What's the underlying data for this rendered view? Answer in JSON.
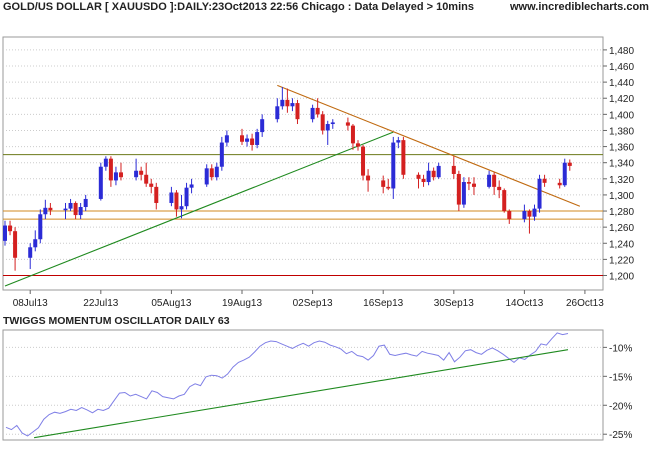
{
  "header": {
    "title": "GOLD/US DOLLAR [ XAUUSDO ]:DAILY:23Oct2013 22:56 Chicago : Data Delayed > 10mins",
    "website": "www.incrediblecharts.com"
  },
  "colors": {
    "up": "#2b2bd6",
    "down": "#d42020",
    "grid": "#cccccc",
    "trendline_green": "#1f8a1f",
    "trendline_brown": "#c06a10",
    "hline_olive": "#6b7a1a",
    "hline_orange": "#d08a20",
    "hline_red": "#c00000",
    "oscillator": "#7f7fe6"
  },
  "chart_data": [
    {
      "type": "candlestick",
      "title": "GOLD/US DOLLAR [ XAUUSDO ]:DAILY:23Oct2013 22:56 Chicago : Data Delayed > 10mins",
      "x_tick_labels": [
        "08Jul13",
        "22Jul13",
        "05Aug13",
        "19Aug13",
        "02Sep13",
        "16Sep13",
        "30Sep13",
        "14Oct13",
        "26Oct13"
      ],
      "y_tick_labels": [
        "1,480",
        "1,460",
        "1,440",
        "1,420",
        "1,400",
        "1,380",
        "1,360",
        "1,340",
        "1,320",
        "1,300",
        "1,280",
        "1,260",
        "1,240",
        "1,220",
        "1,200"
      ],
      "ylim": [
        1182,
        1496
      ],
      "xlim": [
        "2013-07-03",
        "2013-10-28"
      ],
      "grid": true,
      "candles": [
        {
          "d": "2013-07-03",
          "o": 1243,
          "h": 1268,
          "l": 1237,
          "c": 1262
        },
        {
          "d": "2013-07-04",
          "o": 1262,
          "h": 1268,
          "l": 1250,
          "c": 1255
        },
        {
          "d": "2013-07-05",
          "o": 1255,
          "h": 1260,
          "l": 1206,
          "c": 1222
        },
        {
          "d": "2013-07-08",
          "o": 1222,
          "h": 1240,
          "l": 1208,
          "c": 1235
        },
        {
          "d": "2013-07-09",
          "o": 1235,
          "h": 1256,
          "l": 1230,
          "c": 1245
        },
        {
          "d": "2013-07-10",
          "o": 1245,
          "h": 1282,
          "l": 1240,
          "c": 1276
        },
        {
          "d": "2013-07-11",
          "o": 1276,
          "h": 1294,
          "l": 1270,
          "c": 1284
        },
        {
          "d": "2013-07-12",
          "o": 1284,
          "h": 1290,
          "l": 1275,
          "c": 1281
        },
        {
          "d": "2013-07-15",
          "o": 1281,
          "h": 1290,
          "l": 1270,
          "c": 1283
        },
        {
          "d": "2013-07-16",
          "o": 1283,
          "h": 1295,
          "l": 1280,
          "c": 1290
        },
        {
          "d": "2013-07-17",
          "o": 1290,
          "h": 1292,
          "l": 1270,
          "c": 1275
        },
        {
          "d": "2013-07-18",
          "o": 1275,
          "h": 1290,
          "l": 1270,
          "c": 1285
        },
        {
          "d": "2013-07-19",
          "o": 1285,
          "h": 1300,
          "l": 1280,
          "c": 1295
        },
        {
          "d": "2013-07-22",
          "o": 1295,
          "h": 1340,
          "l": 1293,
          "c": 1335
        },
        {
          "d": "2013-07-23",
          "o": 1335,
          "h": 1348,
          "l": 1330,
          "c": 1345
        },
        {
          "d": "2013-07-24",
          "o": 1345,
          "h": 1348,
          "l": 1310,
          "c": 1318
        },
        {
          "d": "2013-07-25",
          "o": 1318,
          "h": 1335,
          "l": 1312,
          "c": 1328
        },
        {
          "d": "2013-07-26",
          "o": 1328,
          "h": 1340,
          "l": 1318,
          "c": 1322
        },
        {
          "d": "2013-07-29",
          "o": 1322,
          "h": 1345,
          "l": 1318,
          "c": 1330
        },
        {
          "d": "2013-07-30",
          "o": 1330,
          "h": 1335,
          "l": 1318,
          "c": 1325
        },
        {
          "d": "2013-07-31",
          "o": 1325,
          "h": 1340,
          "l": 1310,
          "c": 1314
        },
        {
          "d": "2013-08-01",
          "o": 1314,
          "h": 1320,
          "l": 1302,
          "c": 1310
        },
        {
          "d": "2013-08-02",
          "o": 1310,
          "h": 1315,
          "l": 1282,
          "c": 1290
        },
        {
          "d": "2013-08-05",
          "o": 1290,
          "h": 1310,
          "l": 1286,
          "c": 1303
        },
        {
          "d": "2013-08-06",
          "o": 1303,
          "h": 1306,
          "l": 1273,
          "c": 1282
        },
        {
          "d": "2013-08-07",
          "o": 1282,
          "h": 1300,
          "l": 1271,
          "c": 1286
        },
        {
          "d": "2013-08-08",
          "o": 1286,
          "h": 1315,
          "l": 1282,
          "c": 1309
        },
        {
          "d": "2013-08-09",
          "o": 1309,
          "h": 1320,
          "l": 1302,
          "c": 1313
        },
        {
          "d": "2013-08-12",
          "o": 1313,
          "h": 1338,
          "l": 1310,
          "c": 1333
        },
        {
          "d": "2013-08-13",
          "o": 1333,
          "h": 1338,
          "l": 1318,
          "c": 1322
        },
        {
          "d": "2013-08-14",
          "o": 1322,
          "h": 1340,
          "l": 1318,
          "c": 1335
        },
        {
          "d": "2013-08-15",
          "o": 1335,
          "h": 1372,
          "l": 1330,
          "c": 1365
        },
        {
          "d": "2013-08-16",
          "o": 1365,
          "h": 1380,
          "l": 1360,
          "c": 1374
        },
        {
          "d": "2013-08-19",
          "o": 1374,
          "h": 1382,
          "l": 1362,
          "c": 1366
        },
        {
          "d": "2013-08-20",
          "o": 1366,
          "h": 1375,
          "l": 1360,
          "c": 1370
        },
        {
          "d": "2013-08-21",
          "o": 1370,
          "h": 1376,
          "l": 1355,
          "c": 1362
        },
        {
          "d": "2013-08-22",
          "o": 1362,
          "h": 1382,
          "l": 1358,
          "c": 1378
        },
        {
          "d": "2013-08-23",
          "o": 1378,
          "h": 1400,
          "l": 1372,
          "c": 1394
        },
        {
          "d": "2013-08-26",
          "o": 1394,
          "h": 1420,
          "l": 1390,
          "c": 1410
        },
        {
          "d": "2013-08-27",
          "o": 1410,
          "h": 1434,
          "l": 1406,
          "c": 1418
        },
        {
          "d": "2013-08-28",
          "o": 1418,
          "h": 1432,
          "l": 1402,
          "c": 1410
        },
        {
          "d": "2013-08-29",
          "o": 1410,
          "h": 1420,
          "l": 1404,
          "c": 1414
        },
        {
          "d": "2013-08-30",
          "o": 1414,
          "h": 1418,
          "l": 1388,
          "c": 1394
        },
        {
          "d": "2013-09-02",
          "o": 1394,
          "h": 1412,
          "l": 1390,
          "c": 1408
        },
        {
          "d": "2013-09-03",
          "o": 1408,
          "h": 1420,
          "l": 1396,
          "c": 1400
        },
        {
          "d": "2013-09-04",
          "o": 1400,
          "h": 1404,
          "l": 1375,
          "c": 1380
        },
        {
          "d": "2013-09-05",
          "o": 1380,
          "h": 1392,
          "l": 1362,
          "c": 1388
        },
        {
          "d": "2013-09-06",
          "o": 1388,
          "h": 1394,
          "l": 1382,
          "c": 1390
        },
        {
          "d": "2013-09-09",
          "o": 1390,
          "h": 1396,
          "l": 1380,
          "c": 1386
        },
        {
          "d": "2013-09-10",
          "o": 1386,
          "h": 1388,
          "l": 1356,
          "c": 1364
        },
        {
          "d": "2013-09-11",
          "o": 1364,
          "h": 1368,
          "l": 1355,
          "c": 1360
        },
        {
          "d": "2013-09-12",
          "o": 1360,
          "h": 1362,
          "l": 1318,
          "c": 1324
        },
        {
          "d": "2013-09-13",
          "o": 1324,
          "h": 1332,
          "l": 1304,
          "c": 1318
        },
        {
          "d": "2013-09-16",
          "o": 1318,
          "h": 1324,
          "l": 1302,
          "c": 1310
        },
        {
          "d": "2013-09-17",
          "o": 1310,
          "h": 1320,
          "l": 1306,
          "c": 1308
        },
        {
          "d": "2013-09-18",
          "o": 1308,
          "h": 1372,
          "l": 1295,
          "c": 1365
        },
        {
          "d": "2013-09-19",
          "o": 1365,
          "h": 1372,
          "l": 1358,
          "c": 1368
        },
        {
          "d": "2013-09-20",
          "o": 1368,
          "h": 1372,
          "l": 1320,
          "c": 1325
        },
        {
          "d": "2013-09-23",
          "o": 1325,
          "h": 1328,
          "l": 1308,
          "c": 1320
        },
        {
          "d": "2013-09-24",
          "o": 1320,
          "h": 1325,
          "l": 1310,
          "c": 1316
        },
        {
          "d": "2013-09-25",
          "o": 1316,
          "h": 1340,
          "l": 1312,
          "c": 1330
        },
        {
          "d": "2013-09-26",
          "o": 1330,
          "h": 1334,
          "l": 1318,
          "c": 1322
        },
        {
          "d": "2013-09-27",
          "o": 1322,
          "h": 1340,
          "l": 1320,
          "c": 1336
        },
        {
          "d": "2013-09-30",
          "o": 1336,
          "h": 1348,
          "l": 1320,
          "c": 1326
        },
        {
          "d": "2013-10-01",
          "o": 1326,
          "h": 1330,
          "l": 1280,
          "c": 1288
        },
        {
          "d": "2013-10-02",
          "o": 1288,
          "h": 1322,
          "l": 1284,
          "c": 1316
        },
        {
          "d": "2013-10-03",
          "o": 1316,
          "h": 1322,
          "l": 1306,
          "c": 1314
        },
        {
          "d": "2013-10-04",
          "o": 1314,
          "h": 1322,
          "l": 1300,
          "c": 1310
        },
        {
          "d": "2013-10-07",
          "o": 1310,
          "h": 1330,
          "l": 1308,
          "c": 1325
        },
        {
          "d": "2013-10-08",
          "o": 1325,
          "h": 1328,
          "l": 1300,
          "c": 1310
        },
        {
          "d": "2013-10-09",
          "o": 1310,
          "h": 1318,
          "l": 1296,
          "c": 1306
        },
        {
          "d": "2013-10-10",
          "o": 1306,
          "h": 1308,
          "l": 1278,
          "c": 1280
        },
        {
          "d": "2013-10-11",
          "o": 1280,
          "h": 1282,
          "l": 1264,
          "c": 1270
        },
        {
          "d": "2013-10-14",
          "o": 1270,
          "h": 1288,
          "l": 1266,
          "c": 1280
        },
        {
          "d": "2013-10-15",
          "o": 1280,
          "h": 1282,
          "l": 1252,
          "c": 1273
        },
        {
          "d": "2013-10-16",
          "o": 1273,
          "h": 1288,
          "l": 1268,
          "c": 1283
        },
        {
          "d": "2013-10-17",
          "o": 1283,
          "h": 1325,
          "l": 1278,
          "c": 1320
        },
        {
          "d": "2013-10-18",
          "o": 1320,
          "h": 1325,
          "l": 1310,
          "c": 1315
        },
        {
          "d": "2013-10-21",
          "o": 1315,
          "h": 1320,
          "l": 1308,
          "c": 1312
        },
        {
          "d": "2013-10-22",
          "o": 1312,
          "h": 1345,
          "l": 1310,
          "c": 1340
        },
        {
          "d": "2013-10-23",
          "o": 1340,
          "h": 1344,
          "l": 1330,
          "c": 1336
        }
      ],
      "horizontal_lines": [
        {
          "y": 1350,
          "color_key": "hline_olive"
        },
        {
          "y": 1280,
          "color_key": "hline_orange"
        },
        {
          "y": 1270,
          "color_key": "hline_orange"
        },
        {
          "y": 1200,
          "color_key": "hline_red"
        }
      ],
      "trend_lines": [
        {
          "from": {
            "d": "2013-07-03",
            "y": 1187
          },
          "to": {
            "d": "2013-09-18",
            "y": 1378
          },
          "color_key": "trendline_green"
        },
        {
          "from": {
            "d": "2013-08-26",
            "y": 1436
          },
          "to": {
            "d": "2013-10-25",
            "y": 1286
          },
          "color_key": "trendline_brown"
        }
      ]
    },
    {
      "type": "line",
      "title": "TWIGGS MOMENTUM OSCILLATOR DAILY 63",
      "y_tick_labels": [
        "-10%",
        "-15%",
        "-20%",
        "-25%"
      ],
      "y_ticks": [
        -10,
        -15,
        -20,
        -25
      ],
      "ylim": [
        -26,
        -7
      ],
      "grid": true,
      "series": [
        {
          "values": [
            -23.8,
            -24.2,
            -23.5,
            -24.8,
            -25.3,
            -24.6,
            -23.9,
            -22.4,
            -21.6,
            -21.2,
            -21.4,
            -21.1,
            -20.7,
            -20.9,
            -20.4,
            -20.8,
            -21.3,
            -20.7,
            -20.9,
            -20.5,
            -19.2,
            -17.9,
            -17.8,
            -18.4,
            -18.1,
            -18.5,
            -18.9,
            -17.5,
            -17.8,
            -18.5,
            -18.7,
            -18.9,
            -18.4,
            -18.1,
            -16.8,
            -16.3,
            -16.6,
            -15.1,
            -14.8,
            -14.9,
            -15.3,
            -14.6,
            -13.4,
            -12.6,
            -12.2,
            -11.7,
            -10.8,
            -9.8,
            -9.2,
            -8.9,
            -9.0,
            -9.4,
            -9.8,
            -10.2,
            -9.7,
            -9.3,
            -9.8,
            -9.2,
            -8.9,
            -9.1,
            -9.6,
            -9.9,
            -10.3,
            -11.1,
            -10.7,
            -11.4,
            -11.6,
            -12.2,
            -11.4,
            -9.8,
            -9.6,
            -11.2,
            -11.4,
            -11.2,
            -11.0,
            -11.3,
            -11.5,
            -10.7,
            -11.0,
            -11.2,
            -11.4,
            -12.2,
            -10.9,
            -12.5,
            -11.7,
            -10.6,
            -10.4,
            -10.9,
            -11.2,
            -10.5,
            -10.1,
            -10.6,
            -11.2,
            -11.9,
            -12.6,
            -11.8,
            -12.1,
            -11.3,
            -10.7,
            -9.4,
            -9.6,
            -8.5,
            -7.5,
            -7.8,
            -7.6
          ]
        },
        {
          "name": "",
          "from": {
            "x": 0.05,
            "y": -25.6
          },
          "to": {
            "x": 1.0,
            "y": -10.4
          }
        }
      ]
    }
  ]
}
